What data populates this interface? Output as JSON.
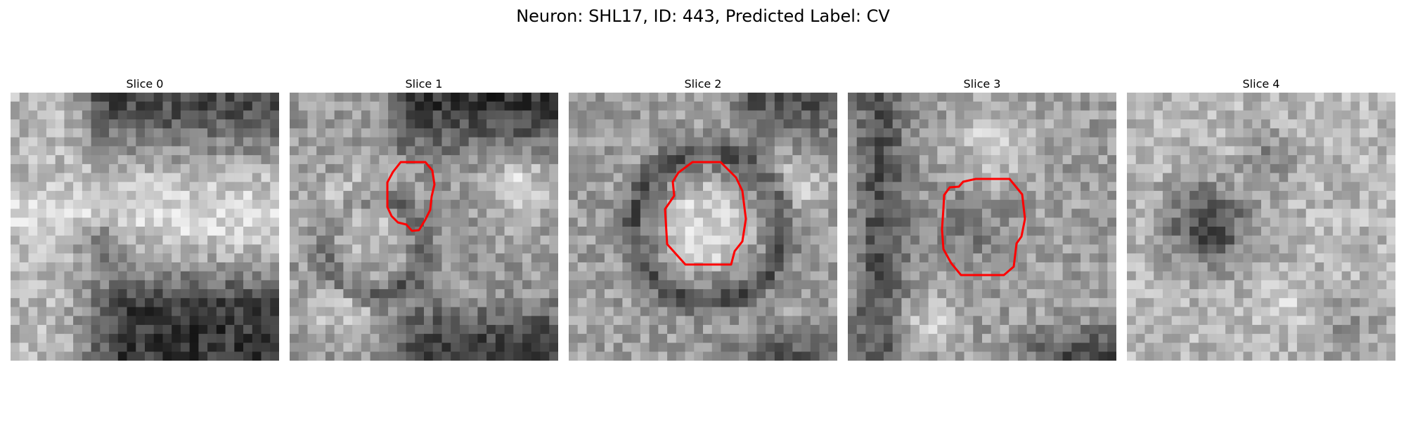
{
  "figure": {
    "title": "Neuron: SHL17, ID: 443, Predicted Label: CV"
  },
  "panels": [
    {
      "title": "Slice 0",
      "has_contour": false
    },
    {
      "title": "Slice 1",
      "has_contour": true
    },
    {
      "title": "Slice 2",
      "has_contour": true
    },
    {
      "title": "Slice 3",
      "has_contour": true
    },
    {
      "title": "Slice 4",
      "has_contour": false
    }
  ],
  "colors": {
    "contour": "#ff0000",
    "background": "#ffffff"
  }
}
